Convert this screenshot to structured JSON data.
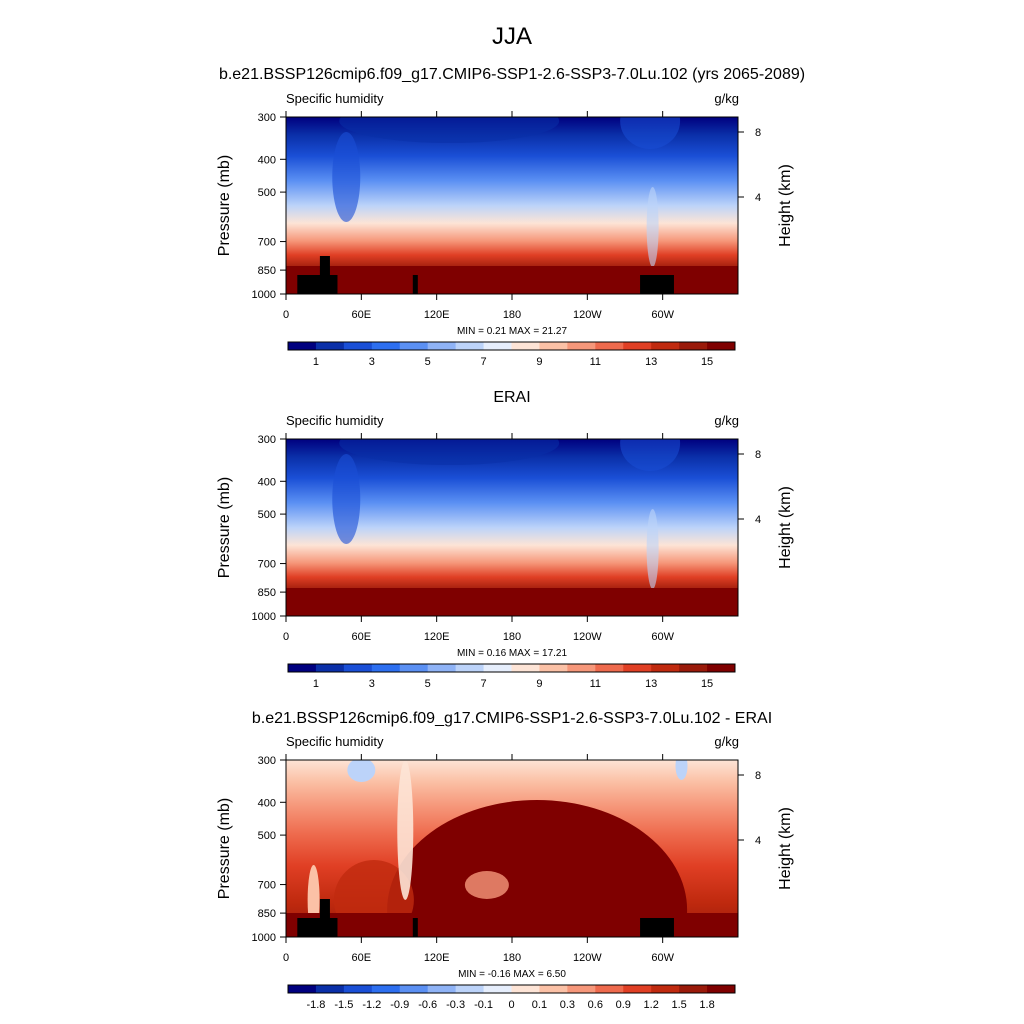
{
  "page_title": "JJA",
  "chart_data": [
    {
      "type": "heatmap",
      "title": "b.e21.BSSP126cmip6.f09_g17.CMIP6-SSP1-2.6-SSP3-7.0Lu.102 (yrs 2065-2089)",
      "left_label": "Specific humidity",
      "right_label": "g/kg",
      "xlabel": "",
      "ylabel": "Pressure (mb)",
      "ylabel_right": "Height (km)",
      "x_ticks": [
        "0",
        "60E",
        "120E",
        "180",
        "120W",
        "60W"
      ],
      "y_ticks": [
        "300",
        "400",
        "500",
        "700",
        "850",
        "1000"
      ],
      "y_right_ticks": [
        "8",
        "4"
      ],
      "ylim": [
        1000,
        300
      ],
      "y_scale": "log",
      "min": 0.21,
      "max": 21.27,
      "minmax_text": "MIN =   0.21  MAX =  21.27",
      "colorbar_labels": [
        "1",
        "3",
        "5",
        "7",
        "9",
        "11",
        "13",
        "15"
      ],
      "colormap": "diverging_blue_red",
      "topography": true
    },
    {
      "type": "heatmap",
      "title": "ERAI",
      "left_label": "Specific humidity",
      "right_label": "g/kg",
      "xlabel": "",
      "ylabel": "Pressure (mb)",
      "ylabel_right": "Height (km)",
      "x_ticks": [
        "0",
        "60E",
        "120E",
        "180",
        "120W",
        "60W"
      ],
      "y_ticks": [
        "300",
        "400",
        "500",
        "700",
        "850",
        "1000"
      ],
      "y_right_ticks": [
        "8",
        "4"
      ],
      "ylim": [
        1000,
        300
      ],
      "y_scale": "log",
      "min": 0.16,
      "max": 17.21,
      "minmax_text": "MIN =   0.16  MAX =  17.21",
      "colorbar_labels": [
        "1",
        "3",
        "5",
        "7",
        "9",
        "11",
        "13",
        "15"
      ],
      "colormap": "diverging_blue_red",
      "topography": false
    },
    {
      "type": "heatmap",
      "title": "b.e21.BSSP126cmip6.f09_g17.CMIP6-SSP1-2.6-SSP3-7.0Lu.102 - ERAI",
      "left_label": "Specific humidity",
      "right_label": "g/kg",
      "xlabel": "",
      "ylabel": "Pressure (mb)",
      "ylabel_right": "Height (km)",
      "x_ticks": [
        "0",
        "60E",
        "120E",
        "180",
        "120W",
        "60W"
      ],
      "y_ticks": [
        "300",
        "400",
        "500",
        "700",
        "850",
        "1000"
      ],
      "y_right_ticks": [
        "8",
        "4"
      ],
      "ylim": [
        1000,
        300
      ],
      "y_scale": "log",
      "min": -0.16,
      "max": 6.5,
      "minmax_text": "MIN =  -0.16  MAX =   6.50",
      "colorbar_labels": [
        "-1.8",
        "-1.5",
        "-1.2",
        "-0.9",
        "-0.6",
        "-0.3",
        "-0.1",
        "0",
        "0.1",
        "0.3",
        "0.6",
        "0.9",
        "1.2",
        "1.5",
        "1.8"
      ],
      "colormap": "diverging_blue_red",
      "topography": true
    }
  ],
  "palette": [
    "#00007f",
    "#0a2fa8",
    "#1a4fd6",
    "#2d6ff0",
    "#5b90f3",
    "#8fb3f6",
    "#bcd3f9",
    "#e6eefc",
    "#fde4d6",
    "#fbc1a6",
    "#f6977a",
    "#ee6a4d",
    "#e03f24",
    "#c02a0f",
    "#9a1a0a",
    "#7f0000"
  ]
}
